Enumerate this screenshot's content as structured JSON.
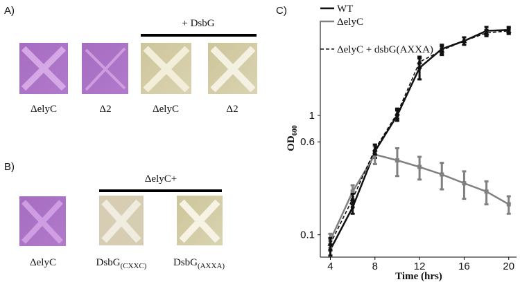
{
  "panel_a": {
    "label": "A)",
    "header": "+ DsbG",
    "captions": [
      "ΔelyC",
      "Δ2",
      "ΔelyC",
      "Δ2"
    ]
  },
  "panel_b": {
    "label": "B)",
    "header": "ΔelyC+",
    "captions": [
      {
        "text": "ΔelyC"
      },
      {
        "text": "DsbG",
        "sub": "(CXXC)"
      },
      {
        "text": "DsbG",
        "sub": "(AXXA)"
      }
    ]
  },
  "chart_data": {
    "type": "line",
    "label": "C)",
    "x_label": "Time (hrs)",
    "y_label": "OD",
    "y_label_sub": "600",
    "x": [
      4,
      6,
      8,
      10,
      12,
      14,
      16,
      18,
      20
    ],
    "xlim": [
      3.1,
      20.7
    ],
    "xticks": [
      4,
      8,
      12,
      16,
      20
    ],
    "ylim": [
      0.065,
      6.2
    ],
    "yticks": [
      0.1,
      0.6,
      1
    ],
    "log_y": true,
    "series": [
      {
        "name": "WT",
        "color": "#111111",
        "line_style": "solid",
        "marker": "circle",
        "values": [
          0.075,
          0.17,
          0.5,
          1.0,
          2.5,
          3.6,
          4.2,
          5.1,
          5.2
        ],
        "errors": [
          0.008,
          0.02,
          0.06,
          0.1,
          0.5,
          0.3,
          0.3,
          0.4,
          0.3
        ]
      },
      {
        "name": "ΔelyC",
        "color": "#808080",
        "line_style": "solid",
        "marker": "square",
        "values": [
          0.09,
          0.23,
          0.47,
          0.42,
          0.37,
          0.32,
          0.27,
          0.23,
          0.18
        ],
        "errors": [
          0.012,
          0.03,
          0.08,
          0.11,
          0.08,
          0.08,
          0.07,
          0.05,
          0.03
        ]
      },
      {
        "name": "ΔelyC + dsbG(AXXA)",
        "color": "#111111",
        "line_style": "dashed",
        "marker": "triangle",
        "values": [
          0.084,
          0.2,
          0.52,
          1.04,
          2.8,
          3.5,
          4.2,
          4.9,
          5.1
        ],
        "errors": [
          0.01,
          0.02,
          0.05,
          0.1,
          0.3,
          0.3,
          0.3,
          0.3,
          0.3
        ]
      }
    ]
  }
}
